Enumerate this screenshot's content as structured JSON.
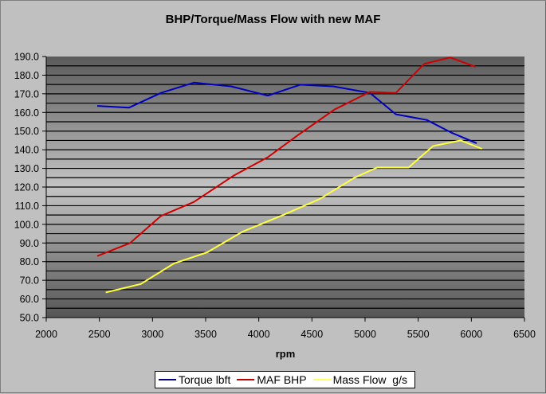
{
  "chart_data": {
    "type": "line",
    "title": "BHP/Torque/Mass Flow with new MAF",
    "xlabel": "rpm",
    "ylabel": "",
    "xlim": [
      2000,
      6500
    ],
    "ylim": [
      50,
      190
    ],
    "x_ticks": [
      "2000",
      "2500",
      "3000",
      "3500",
      "4000",
      "4500",
      "5000",
      "5500",
      "6000",
      "6500"
    ],
    "y_ticks": [
      "50.0",
      "60.0",
      "70.0",
      "80.0",
      "90.0",
      "100.0",
      "110.0",
      "120.0",
      "130.0",
      "140.0",
      "150.0",
      "160.0",
      "170.0",
      "180.0",
      "190.0"
    ],
    "grid": "horizontal minor every 5",
    "legend_position": "bottom",
    "series": [
      {
        "name": "Torque lbft",
        "color": "#0000c0",
        "x": [
          2480,
          2780,
          3080,
          3390,
          3740,
          4085,
          4390,
          4700,
          5045,
          5290,
          5580,
          5820,
          6050
        ],
        "values": [
          163.5,
          162.6,
          170.5,
          176,
          174,
          169,
          174.9,
          174,
          170.5,
          159,
          156,
          149,
          143.5
        ]
      },
      {
        "name": "MAF BHP",
        "color": "#d00000",
        "x": [
          2480,
          2790,
          3080,
          3390,
          3760,
          4085,
          4360,
          4710,
          5045,
          5290,
          5555,
          5800,
          6040
        ],
        "values": [
          83,
          90,
          104.5,
          112,
          126,
          136,
          147.5,
          161.5,
          171,
          170.5,
          186,
          189.5,
          184.5
        ]
      },
      {
        "name": "Mass Flow  g/s",
        "color": "#ffff40",
        "x": [
          2560,
          2890,
          3200,
          3515,
          3845,
          4230,
          4570,
          4900,
          5115,
          5410,
          5640,
          5900,
          6100
        ],
        "values": [
          63.5,
          68,
          79,
          85,
          96,
          105,
          113.5,
          125,
          130.5,
          130.5,
          142,
          145,
          140.5
        ]
      }
    ]
  },
  "legend": {
    "items": [
      {
        "label": "Torque lbft",
        "color": "#000080"
      },
      {
        "label": "MAF BHP",
        "color": "#c00000"
      },
      {
        "label": "Mass Flow  g/s",
        "color": "#ffff60"
      }
    ]
  }
}
